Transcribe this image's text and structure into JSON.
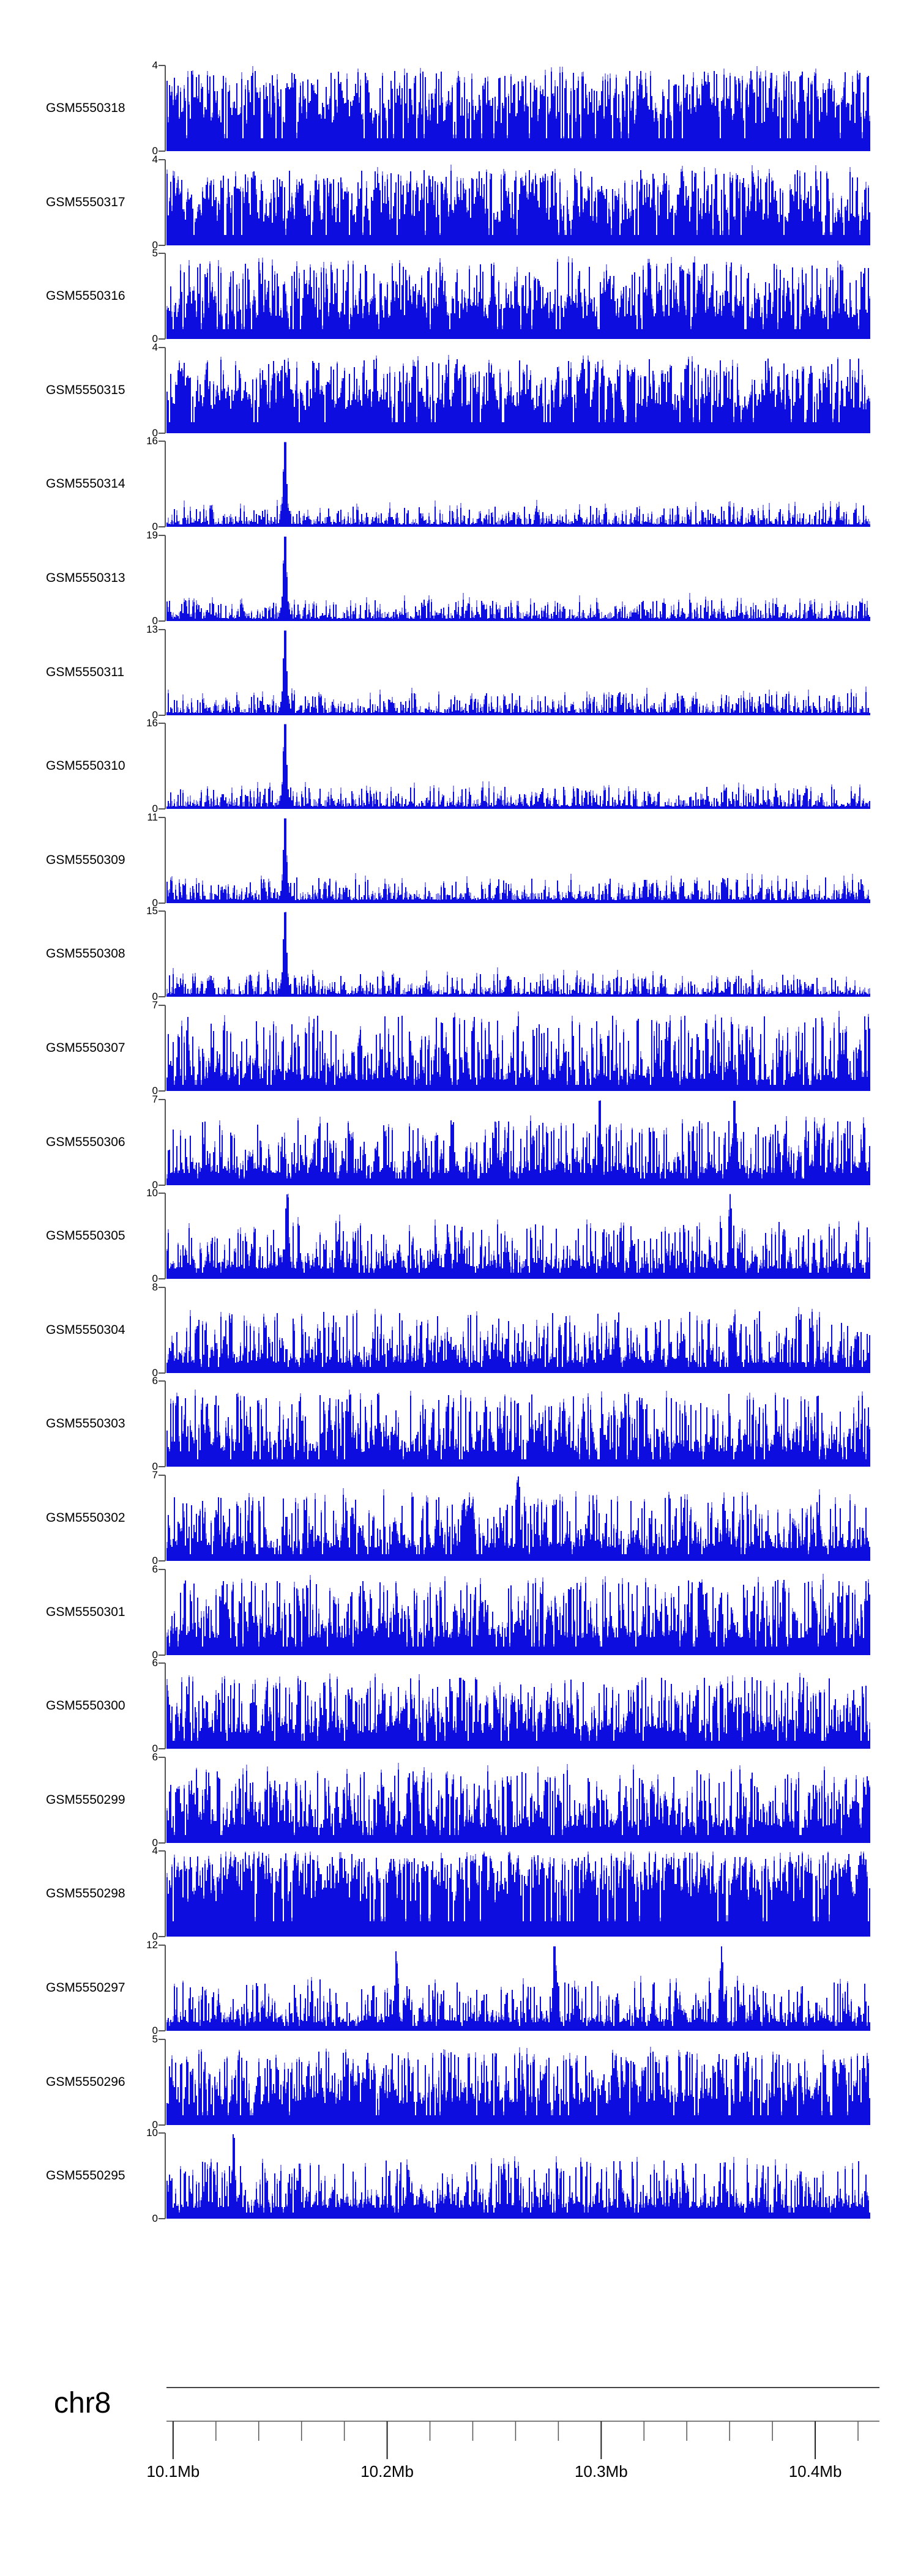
{
  "page": {
    "background": "#ffffff"
  },
  "colors": {
    "signal": "#0d0ddf",
    "signal_light": "#8d8de8",
    "axis_gray": "#555555",
    "ruler_top_line": "#444444",
    "ruler_axis_line": "#7d7d7d",
    "minor_tick": "#555555",
    "major_tick": "#222222",
    "text": "#000000"
  },
  "chart_data": {
    "type": "area",
    "title": "",
    "subtitle": "",
    "description": "Genome browser coverage tracks (GEO samples) over chr8:10.10-10.43Mb; blue filled coverage signal per sample, y-axis 0 to per-track max",
    "legend": null,
    "grid": false,
    "y_axis": {
      "min_label": "0"
    },
    "x_axis": {
      "chrom_label": "chr8",
      "unit": "Mb",
      "range_mb": [
        10.0969,
        10.426
      ],
      "minor_tick_interval_mb": 0.02,
      "major_ticks": [
        {
          "mb": 10.1,
          "label": "10.1Mb"
        },
        {
          "mb": 10.2,
          "label": "10.2Mb"
        },
        {
          "mb": 10.3,
          "label": "10.3Mb"
        },
        {
          "mb": 10.4,
          "label": "10.4Mb"
        }
      ]
    },
    "tracks": [
      {
        "label": "GSM5550318",
        "ymax": 4,
        "profile": {
          "base": 0.32,
          "amp": 0.62,
          "shape": 0.9
        },
        "spikes": []
      },
      {
        "label": "GSM5550317",
        "ymax": 4,
        "profile": {
          "base": 0.26,
          "amp": 0.62,
          "shape": 1.1
        },
        "spikes": []
      },
      {
        "label": "GSM5550316",
        "ymax": 5,
        "profile": {
          "base": 0.24,
          "amp": 0.66,
          "shape": 1.3
        },
        "spikes": []
      },
      {
        "label": "GSM5550315",
        "ymax": 4,
        "profile": {
          "base": 0.27,
          "amp": 0.6,
          "shape": 1.2
        },
        "spikes": []
      },
      {
        "label": "GSM5550314",
        "ymax": 16,
        "profile": {
          "base": 0.03,
          "amp": 0.22,
          "shape": 2.6
        },
        "spikes": [
          {
            "mb": 10.152,
            "h": 0.93
          }
        ]
      },
      {
        "label": "GSM5550313",
        "ymax": 19,
        "profile": {
          "base": 0.03,
          "amp": 0.22,
          "shape": 2.6
        },
        "spikes": [
          {
            "mb": 10.152,
            "h": 0.97
          }
        ]
      },
      {
        "label": "GSM5550311",
        "ymax": 13,
        "profile": {
          "base": 0.03,
          "amp": 0.24,
          "shape": 2.6
        },
        "spikes": [
          {
            "mb": 10.152,
            "h": 0.96
          }
        ]
      },
      {
        "label": "GSM5550310",
        "ymax": 16,
        "profile": {
          "base": 0.03,
          "amp": 0.23,
          "shape": 2.6
        },
        "spikes": [
          {
            "mb": 10.152,
            "h": 0.97
          }
        ]
      },
      {
        "label": "GSM5550309",
        "ymax": 11,
        "profile": {
          "base": 0.04,
          "amp": 0.26,
          "shape": 2.4
        },
        "spikes": [
          {
            "mb": 10.152,
            "h": 0.9
          }
        ]
      },
      {
        "label": "GSM5550308",
        "ymax": 15,
        "profile": {
          "base": 0.03,
          "amp": 0.24,
          "shape": 2.6
        },
        "spikes": [
          {
            "mb": 10.152,
            "h": 0.97
          }
        ]
      },
      {
        "label": "GSM5550307",
        "ymax": 7,
        "profile": {
          "base": 0.13,
          "amp": 0.75,
          "shape": 1.7
        },
        "spikes": []
      },
      {
        "label": "GSM5550306",
        "ymax": 7,
        "profile": {
          "base": 0.14,
          "amp": 0.62,
          "shape": 1.9
        },
        "spikes": [
          {
            "mb": 10.299,
            "h": 0.85
          },
          {
            "mb": 10.362,
            "h": 0.97
          }
        ]
      },
      {
        "label": "GSM5550305",
        "ymax": 10,
        "profile": {
          "base": 0.12,
          "amp": 0.55,
          "shape": 2.2
        },
        "spikes": [
          {
            "mb": 10.153,
            "h": 0.97
          },
          {
            "mb": 10.36,
            "h": 0.85
          }
        ]
      },
      {
        "label": "GSM5550304",
        "ymax": 8,
        "profile": {
          "base": 0.12,
          "amp": 0.6,
          "shape": 2.1
        },
        "spikes": []
      },
      {
        "label": "GSM5550303",
        "ymax": 6,
        "profile": {
          "base": 0.17,
          "amp": 0.68,
          "shape": 1.6
        },
        "spikes": []
      },
      {
        "label": "GSM5550302",
        "ymax": 7,
        "profile": {
          "base": 0.15,
          "amp": 0.62,
          "shape": 1.8
        },
        "spikes": [
          {
            "mb": 10.261,
            "h": 0.97
          }
        ]
      },
      {
        "label": "GSM5550301",
        "ymax": 6,
        "profile": {
          "base": 0.2,
          "amp": 0.68,
          "shape": 1.5
        },
        "spikes": []
      },
      {
        "label": "GSM5550300",
        "ymax": 6,
        "profile": {
          "base": 0.18,
          "amp": 0.66,
          "shape": 1.6
        },
        "spikes": []
      },
      {
        "label": "GSM5550299",
        "ymax": 6,
        "profile": {
          "base": 0.18,
          "amp": 0.68,
          "shape": 1.6
        },
        "spikes": []
      },
      {
        "label": "GSM5550298",
        "ymax": 4,
        "profile": {
          "base": 0.4,
          "amp": 0.58,
          "shape": 0.8
        },
        "spikes": []
      },
      {
        "label": "GSM5550297",
        "ymax": 12,
        "profile": {
          "base": 0.1,
          "amp": 0.5,
          "shape": 2.4
        },
        "spikes": [
          {
            "mb": 10.278,
            "h": 0.97
          },
          {
            "mb": 10.356,
            "h": 0.82
          },
          {
            "mb": 10.204,
            "h": 0.72
          }
        ]
      },
      {
        "label": "GSM5550296",
        "ymax": 5,
        "profile": {
          "base": 0.24,
          "amp": 0.62,
          "shape": 1.2
        },
        "spikes": []
      },
      {
        "label": "GSM5550295",
        "ymax": 10,
        "profile": {
          "base": 0.13,
          "amp": 0.55,
          "shape": 2.1
        },
        "spikes": [
          {
            "mb": 10.128,
            "h": 0.82
          }
        ]
      }
    ]
  }
}
